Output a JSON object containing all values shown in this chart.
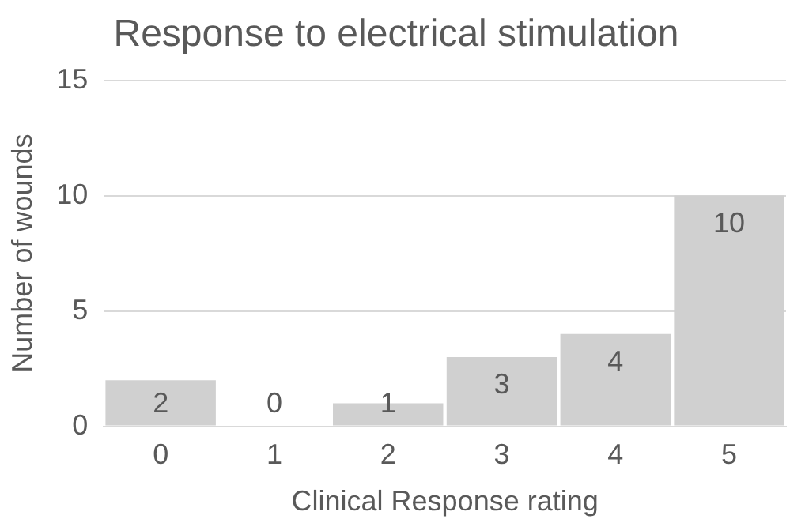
{
  "chart_data": {
    "type": "bar",
    "title": "Response to electrical stimulation",
    "xlabel": "Clinical Response rating",
    "ylabel": "Number of wounds",
    "categories": [
      "0",
      "1",
      "2",
      "3",
      "4",
      "5"
    ],
    "values": [
      2,
      0,
      1,
      3,
      4,
      10
    ],
    "color": "#d0d0d0",
    "ylim": [
      0,
      15
    ],
    "yticks": [
      0,
      5,
      10,
      15
    ],
    "grid": "y",
    "data_labels": true,
    "legend": false
  }
}
